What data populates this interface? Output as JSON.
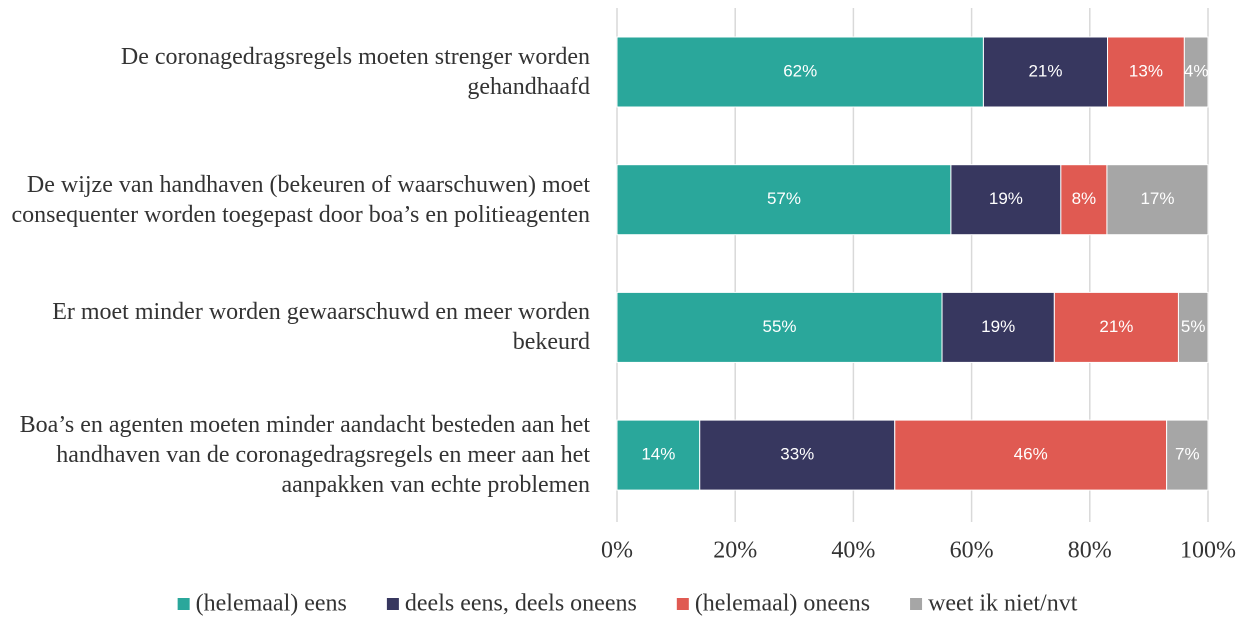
{
  "chart_data": {
    "type": "stacked_barh",
    "categories": [
      "De coronagedragsregels moeten strenger worden gehandhaafd",
      "De wijze van handhaven (bekeuren of waarschuwen) moet consequenter worden toegepast door boa’s en politieagenten",
      "Er moet minder worden gewaarschuwd en meer worden bekeurd",
      "Boa’s en agenten moeten minder aandacht besteden aan het handhaven van de coronagedragsregels en meer aan het aanpakken van echte problemen"
    ],
    "series": [
      {
        "name": "(helemaal) eens",
        "color": "#2aa79b",
        "values": [
          62,
          56.5,
          55,
          14
        ],
        "value_labels": [
          "62%",
          "57%",
          "55%",
          "14%"
        ]
      },
      {
        "name": "deels eens, deels oneens",
        "color": "#37375f",
        "values": [
          21,
          18.6,
          19,
          33
        ],
        "value_labels": [
          "21%",
          "19%",
          "19%",
          "33%"
        ]
      },
      {
        "name": "(helemaal) oneens",
        "color": "#e05a52",
        "values": [
          13,
          7.8,
          21,
          46
        ],
        "value_labels": [
          "13%",
          "8%",
          "21%",
          "46%"
        ]
      },
      {
        "name": "weet ik niet/nvt",
        "color": "#a6a6a6",
        "values": [
          4,
          17.1,
          5,
          7
        ],
        "value_labels": [
          "4%",
          "17%",
          "5%",
          "7%"
        ]
      }
    ],
    "xlim": [
      0,
      100
    ],
    "xticks": [
      {
        "value": 0,
        "label": "0%"
      },
      {
        "value": 20,
        "label": "20%"
      },
      {
        "value": 40,
        "label": "40%"
      },
      {
        "value": 60,
        "label": "60%"
      },
      {
        "value": 80,
        "label": "80%"
      },
      {
        "value": 100,
        "label": "100%"
      }
    ],
    "grid": true,
    "legend": "bottom"
  }
}
